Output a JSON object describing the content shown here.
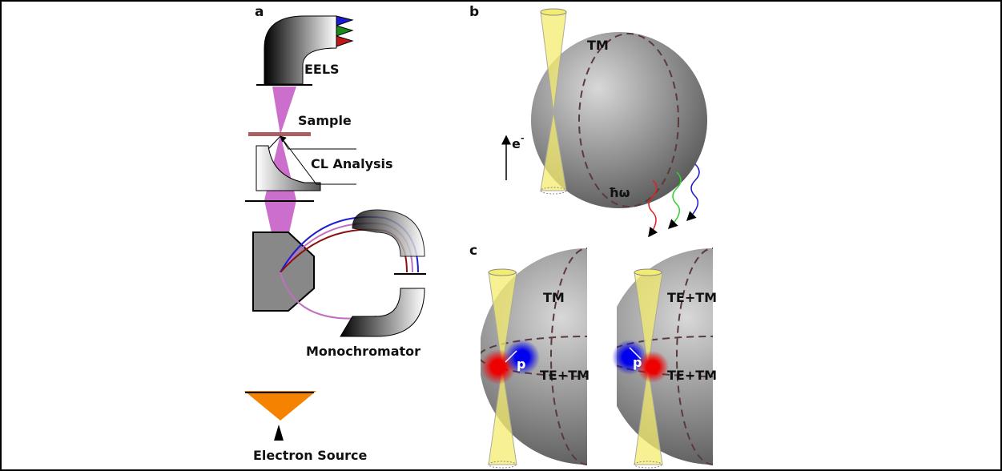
{
  "panel_a": {
    "label": "a",
    "eels": "EELS",
    "sample": "Sample",
    "cl_analysis": "CL Analysis",
    "monochromator": "Monochromator",
    "electron_source": "Electron Source"
  },
  "panel_b": {
    "label": "b",
    "mode": "TM",
    "electron": "e",
    "electron_sup": "-",
    "photon": "ħω"
  },
  "panel_c": {
    "label": "c",
    "left": {
      "upper_mode": "TM",
      "lower_mode": "TE+TM",
      "dipole": "p"
    },
    "right": {
      "upper_mode": "TE+TM",
      "lower_mode": "TE+TM",
      "dipole": "p"
    }
  }
}
